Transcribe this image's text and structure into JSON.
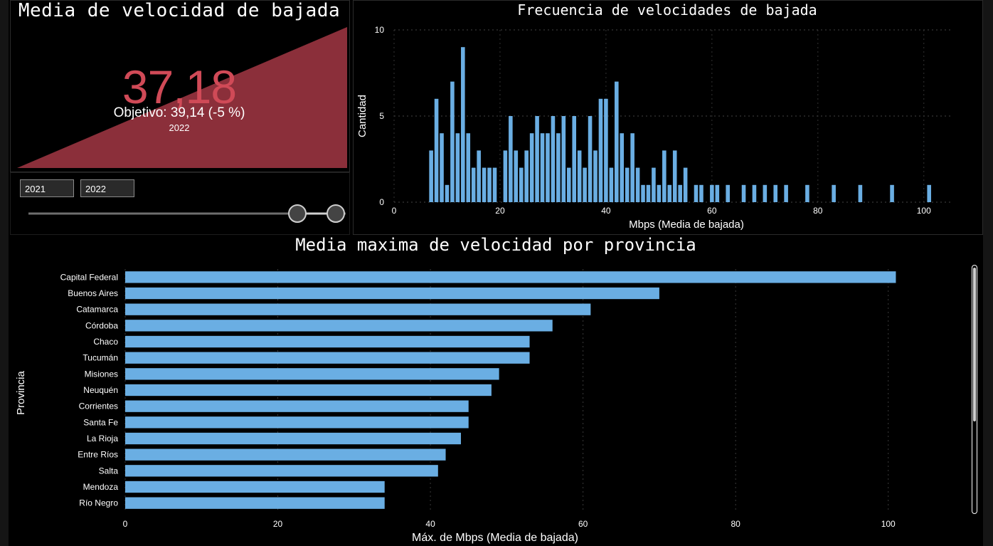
{
  "kpi": {
    "title": "Media de velocidad de bajada",
    "value": "37,18",
    "goal": "Objetivo: 39,14 (-5 %)",
    "year": "2022",
    "color": "#8b2f3a",
    "value_color": "#d04a57"
  },
  "filters": {
    "year_start": "2021",
    "year_end": "2022",
    "slider_range": [
      0.86,
      1.0
    ]
  },
  "histogram": {
    "title": "Frecuencia de velocidades de bajada",
    "chart_data": {
      "type": "bar",
      "title": "Frecuencia de velocidades de bajada",
      "xlabel": "Mbps (Media de bajada)",
      "ylabel": "Cantidad",
      "xlim": [
        0,
        105
      ],
      "ylim": [
        0,
        10
      ],
      "x_ticks": [
        "0",
        "20",
        "40",
        "60",
        "80",
        "100"
      ],
      "y_ticks": [
        "0",
        "5",
        "10"
      ],
      "bar_color": "#6aaee3",
      "x": [
        7,
        8,
        9,
        10,
        11,
        12,
        13,
        14,
        15,
        16,
        17,
        18,
        19,
        21,
        22,
        23,
        24,
        25,
        26,
        27,
        28,
        29,
        30,
        31,
        32,
        33,
        34,
        35,
        36,
        37,
        38,
        39,
        40,
        41,
        42,
        43,
        44,
        45,
        46,
        47,
        48,
        49,
        50,
        51,
        52,
        53,
        54,
        55,
        57,
        58,
        60,
        61,
        63,
        66,
        68,
        70,
        72,
        74,
        78,
        83,
        88,
        94,
        101
      ],
      "values": [
        3,
        6,
        4,
        1,
        7,
        4,
        9,
        4,
        2,
        3,
        2,
        2,
        2,
        3,
        5,
        3,
        2,
        3,
        4,
        5,
        4,
        4,
        5,
        4,
        5,
        2,
        5,
        3,
        2,
        5,
        3,
        6,
        6,
        2,
        7,
        4,
        2,
        4,
        2,
        1,
        1,
        2,
        1,
        3,
        1,
        3,
        1,
        2,
        1,
        1,
        1,
        1,
        1,
        1,
        1,
        1,
        1,
        1,
        1,
        1,
        1,
        1,
        1
      ]
    }
  },
  "bar_chart": {
    "title": "Media maxima de velocidad por provincia",
    "chart_data": {
      "type": "bar",
      "orientation": "horizontal",
      "title": "Media maxima de velocidad por provincia",
      "xlabel": "Máx. de Mbps (Media de bajada)",
      "ylabel": "Provincia",
      "xlim": [
        0,
        110
      ],
      "x_ticks": [
        "0",
        "20",
        "40",
        "60",
        "80",
        "100"
      ],
      "bar_color": "#6aaee3",
      "categories": [
        "Capital Federal",
        "Buenos Aires",
        "Catamarca",
        "Córdoba",
        "Chaco",
        "Tucumán",
        "Misiones",
        "Neuquén",
        "Corrientes",
        "Santa Fe",
        "La Rioja",
        "Entre Ríos",
        "Salta",
        "Mendoza",
        "Río Negro"
      ],
      "values": [
        101,
        70,
        61,
        56,
        53,
        53,
        49,
        48,
        45,
        45,
        44,
        42,
        41,
        34,
        34
      ]
    }
  }
}
